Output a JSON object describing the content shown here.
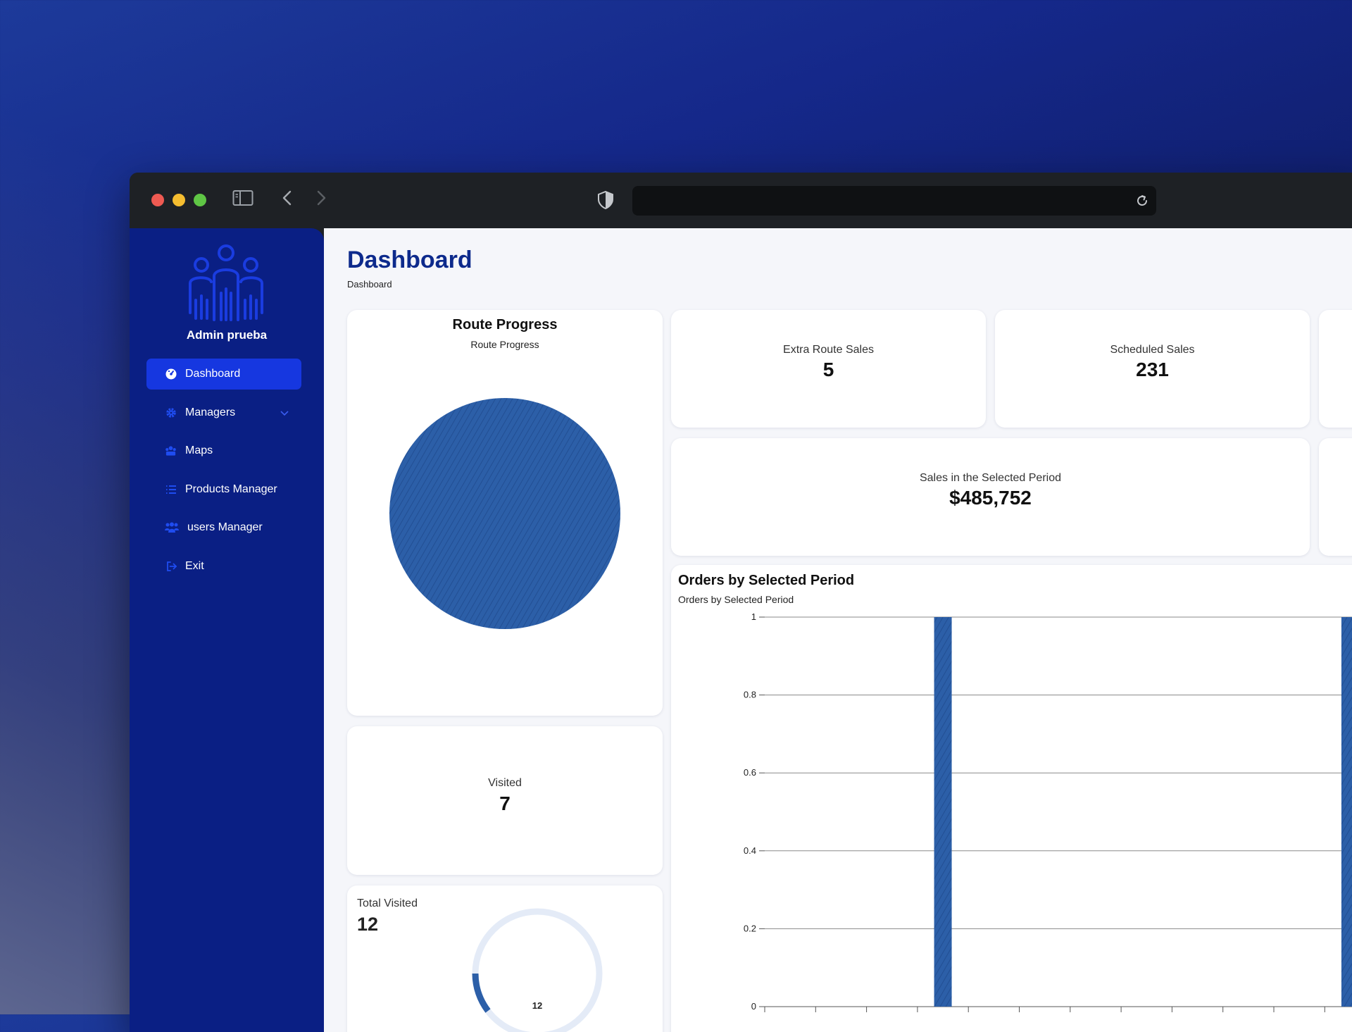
{
  "theme": {
    "accent": "#1637e0",
    "sidebar": "#0a1f84",
    "title": "#0d2a8c",
    "chart": "#2c5fa8"
  },
  "browser": {
    "icons": [
      "sidebar-toggle-icon",
      "back-icon",
      "forward-icon",
      "shield-icon",
      "reload-icon"
    ],
    "url": ""
  },
  "sidebar": {
    "user": "Admin prueba",
    "items": [
      {
        "label": "Dashboard",
        "icon": "dashboard-icon",
        "active": true
      },
      {
        "label": "Managers",
        "icon": "gear-icon"
      },
      {
        "label": "Maps",
        "icon": "map-icon"
      },
      {
        "label": "Products Manager",
        "icon": "list-icon"
      },
      {
        "label": "users Manager",
        "icon": "users-icon"
      },
      {
        "label": "Exit",
        "icon": "exit-icon"
      }
    ]
  },
  "page": {
    "title": "Dashboard",
    "breadcrumb": "Dashboard"
  },
  "route_progress": {
    "title": "Route Progress",
    "subtitle": "Route Progress"
  },
  "stats": {
    "extra_route_sales": {
      "label": "Extra Route Sales",
      "value": "5"
    },
    "scheduled_sales": {
      "label": "Scheduled Sales",
      "value": "231"
    },
    "period_sales": {
      "label": "Sales in the Selected Period",
      "value": "$485,752"
    },
    "visited": {
      "label": "Visited",
      "value": "7"
    },
    "total_visited": {
      "label": "Total Visited",
      "value": "12",
      "ring_label": "12"
    }
  },
  "orders": {
    "title": "Orders by Selected Period",
    "subtitle": "Orders by Selected Period"
  },
  "chart_data": [
    {
      "type": "pie",
      "title": "Route Progress",
      "subtitle": "Route Progress",
      "slices": [
        {
          "value": 1,
          "color": "#2c5fa8"
        }
      ]
    },
    {
      "type": "bar",
      "title": "Orders by Selected Period",
      "subtitle": "Orders by Selected Period",
      "ylim": [
        0,
        1
      ],
      "yticks": [
        0,
        0.2,
        0.4,
        0.6,
        0.8,
        1
      ],
      "ytick_labels": [
        "0",
        "0.2",
        "0.4",
        "0.6",
        "0.8",
        "1"
      ],
      "grid": true,
      "values": [
        0,
        0,
        0,
        1,
        0,
        0,
        0,
        0,
        0,
        0,
        0,
        1,
        0
      ],
      "color": "#2c5fa8"
    }
  ]
}
